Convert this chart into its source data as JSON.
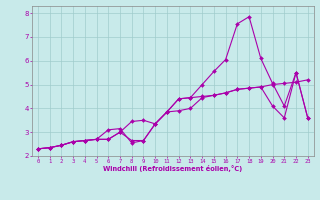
{
  "xlabel": "Windchill (Refroidissement éolien,°C)",
  "bg_color": "#c8eaea",
  "grid_color": "#a0cccc",
  "line_color": "#aa00aa",
  "xlim": [
    -0.5,
    23.5
  ],
  "ylim": [
    2.0,
    8.3
  ],
  "yticks": [
    2,
    3,
    4,
    5,
    6,
    7,
    8
  ],
  "xticks": [
    0,
    1,
    2,
    3,
    4,
    5,
    6,
    7,
    8,
    9,
    10,
    11,
    12,
    13,
    14,
    15,
    16,
    17,
    18,
    19,
    20,
    21,
    22,
    23
  ],
  "series1_x": [
    0,
    1,
    2,
    3,
    4,
    5,
    6,
    7,
    8,
    9,
    10,
    11,
    12,
    13,
    14,
    15,
    16,
    17,
    18,
    19,
    20,
    21,
    22,
    23
  ],
  "series1_y": [
    2.3,
    2.35,
    2.45,
    2.6,
    2.65,
    2.7,
    3.1,
    3.15,
    2.55,
    2.65,
    3.35,
    3.85,
    4.4,
    4.45,
    5.0,
    5.55,
    6.05,
    7.55,
    7.85,
    6.1,
    5.05,
    4.1,
    5.5,
    3.6
  ],
  "series2_x": [
    0,
    1,
    2,
    3,
    4,
    5,
    6,
    7,
    8,
    9,
    10,
    11,
    12,
    13,
    14,
    15,
    16,
    17,
    18,
    19,
    20,
    21,
    22,
    23
  ],
  "series2_y": [
    2.3,
    2.35,
    2.45,
    2.6,
    2.65,
    2.7,
    2.7,
    3.0,
    3.45,
    3.5,
    3.35,
    3.85,
    3.9,
    4.0,
    4.45,
    4.55,
    4.65,
    4.8,
    4.85,
    4.9,
    5.0,
    5.05,
    5.1,
    5.2
  ],
  "series3_x": [
    0,
    1,
    2,
    3,
    4,
    5,
    6,
    7,
    8,
    9,
    10,
    11,
    12,
    13,
    14,
    15,
    16,
    17,
    18,
    19,
    20,
    21,
    22,
    23
  ],
  "series3_y": [
    2.3,
    2.35,
    2.45,
    2.6,
    2.65,
    2.7,
    2.7,
    3.0,
    2.65,
    2.65,
    3.35,
    3.85,
    4.4,
    4.45,
    4.5,
    4.55,
    4.65,
    4.8,
    4.85,
    4.9,
    4.1,
    3.6,
    5.5,
    3.6
  ]
}
